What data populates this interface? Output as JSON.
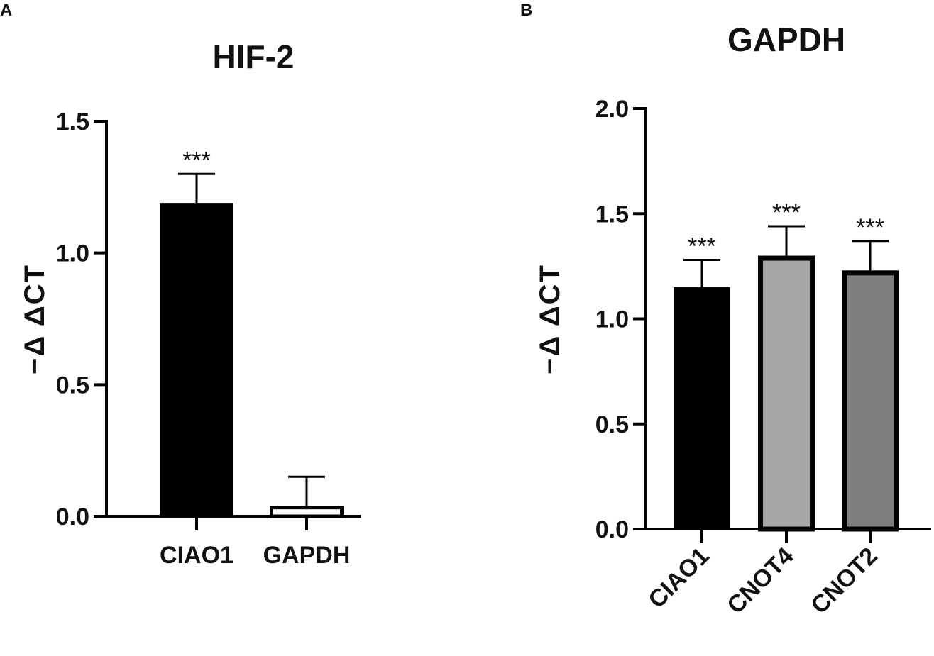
{
  "chart_data": [
    {
      "panel": "A",
      "type": "bar",
      "title": "HIF-2",
      "ylabel": "−Δ ΔCT",
      "xlabel": "",
      "ylim": [
        0,
        1.5
      ],
      "yticks": [
        0.0,
        0.5,
        1.0,
        1.5
      ],
      "ytick_labels": [
        "0.0",
        "0.5",
        "1.0",
        "1.5"
      ],
      "grid": false,
      "categories": [
        "CIAO1",
        "GAPDH"
      ],
      "values": [
        1.19,
        0.04
      ],
      "errors": [
        0.11,
        0.11
      ],
      "significance": [
        "***",
        ""
      ],
      "bar_fill_colors": [
        "#000000",
        "#ffffff"
      ],
      "bar_edge_color": "#000000"
    },
    {
      "panel": "B",
      "type": "bar",
      "title": "GAPDH",
      "ylabel": "−Δ ΔCT",
      "xlabel": "",
      "ylim": [
        0,
        2.0
      ],
      "yticks": [
        0.0,
        0.5,
        1.0,
        1.5,
        2.0
      ],
      "ytick_labels": [
        "0.0",
        "0.5",
        "1.0",
        "1.5",
        "2.0"
      ],
      "grid": false,
      "categories": [
        "CIAO1",
        "CNOT4",
        "CNOT2"
      ],
      "values": [
        1.15,
        1.3,
        1.23
      ],
      "errors": [
        0.13,
        0.14,
        0.14
      ],
      "significance": [
        "***",
        "***",
        "***"
      ],
      "bar_fill_colors": [
        "#000000",
        "#a6a6a8",
        "#7e7e7e"
      ],
      "bar_edge_color": "#000000"
    }
  ]
}
